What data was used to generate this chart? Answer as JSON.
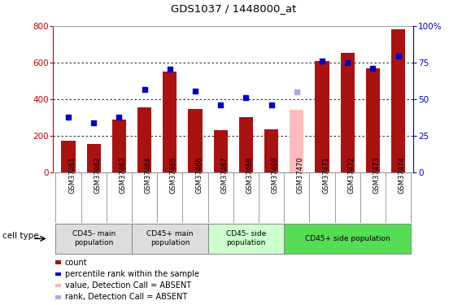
{
  "title": "GDS1037 / 1448000_at",
  "samples": [
    "GSM37461",
    "GSM37462",
    "GSM37463",
    "GSM37464",
    "GSM37465",
    "GSM37466",
    "GSM37467",
    "GSM37468",
    "GSM37469",
    "GSM37470",
    "GSM37471",
    "GSM37472",
    "GSM37473",
    "GSM37474"
  ],
  "bar_values": [
    175,
    155,
    290,
    355,
    550,
    345,
    230,
    300,
    235,
    340,
    610,
    655,
    570,
    780
  ],
  "bar_colors": [
    "#aa1111",
    "#aa1111",
    "#aa1111",
    "#aa1111",
    "#aa1111",
    "#aa1111",
    "#aa1111",
    "#aa1111",
    "#aa1111",
    "#ffbbbb",
    "#aa1111",
    "#aa1111",
    "#aa1111",
    "#aa1111"
  ],
  "dot_values": [
    300,
    270,
    300,
    455,
    565,
    445,
    370,
    410,
    370,
    440,
    610,
    600,
    570,
    635
  ],
  "dot_colors": [
    "#0000cc",
    "#0000cc",
    "#0000cc",
    "#0000cc",
    "#0000cc",
    "#0000cc",
    "#0000cc",
    "#0000cc",
    "#0000cc",
    "#aaaaee",
    "#0000cc",
    "#0000cc",
    "#0000cc",
    "#0000cc"
  ],
  "ylim_left": [
    0,
    800
  ],
  "ylim_right": [
    0,
    100
  ],
  "left_ticks": [
    0,
    200,
    400,
    600,
    800
  ],
  "right_ticks": [
    0,
    25,
    50,
    75,
    100
  ],
  "right_tick_labels": [
    "0",
    "25",
    "50",
    "75",
    "100%"
  ],
  "cell_type_groups": [
    {
      "label": "CD45- main\npopulation",
      "start": 0,
      "end": 3,
      "color": "#dddddd"
    },
    {
      "label": "CD45+ main\npopulation",
      "start": 3,
      "end": 6,
      "color": "#dddddd"
    },
    {
      "label": "CD45- side\npopulation",
      "start": 6,
      "end": 9,
      "color": "#ccffcc"
    },
    {
      "label": "CD45+ side population",
      "start": 9,
      "end": 14,
      "color": "#55dd55"
    }
  ],
  "legend_items": [
    {
      "label": "count",
      "color": "#aa1111"
    },
    {
      "label": "percentile rank within the sample",
      "color": "#0000cc"
    },
    {
      "label": "value, Detection Call = ABSENT",
      "color": "#ffbbbb"
    },
    {
      "label": "rank, Detection Call = ABSENT",
      "color": "#aaaaee"
    }
  ],
  "cell_type_label": "cell type",
  "bg_color": "#ffffff",
  "plot_bg_color": "#ffffff",
  "left_axis_color": "#cc0000",
  "right_axis_color": "#0000cc"
}
